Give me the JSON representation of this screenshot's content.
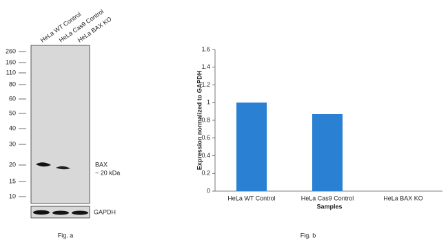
{
  "blot": {
    "lanes": [
      "HeLa WT Control",
      "HeLa Cas9 Control",
      "HeLa BAX KO"
    ],
    "markers": [
      260,
      160,
      110,
      80,
      60,
      50,
      40,
      30,
      20,
      15,
      10
    ],
    "target": "BAX",
    "target_size": "~ 20 kDa",
    "loading_control": "GAPDH",
    "caption": "Fig. a"
  },
  "chart_data": {
    "type": "bar",
    "ylabel": "Expression normalized to GAPDH",
    "xlabel": "Samples",
    "categories": [
      "HeLa WT Control",
      "HeLa Cas9 Control",
      "HeLa BAX KO"
    ],
    "values": [
      1,
      0.87,
      0
    ],
    "color": "#2a80d2",
    "ylim": [
      0,
      1.6
    ],
    "yticks": [
      0,
      0.2,
      0.4,
      0.6,
      0.8,
      1,
      1.2,
      1.4,
      1.6
    ],
    "caption": "Fig. b"
  }
}
